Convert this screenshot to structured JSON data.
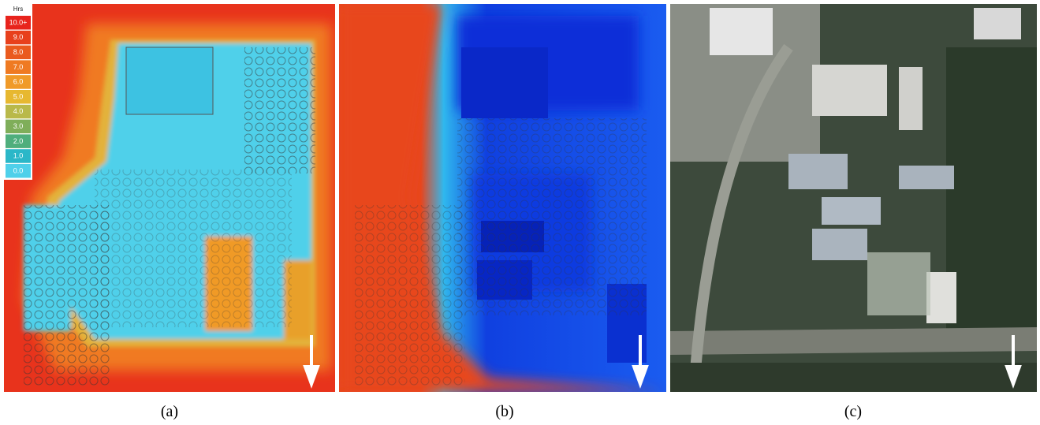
{
  "legend": {
    "title": "Hrs",
    "items": [
      "10.0+",
      "9.0",
      "8.0",
      "7.0",
      "6.0",
      "5.0",
      "4.0",
      "3.0",
      "2.0",
      "1.0",
      "0.0"
    ]
  },
  "panels": [
    {
      "caption": "(a)"
    },
    {
      "caption": "(b)"
    },
    {
      "caption": "(c)"
    }
  ]
}
